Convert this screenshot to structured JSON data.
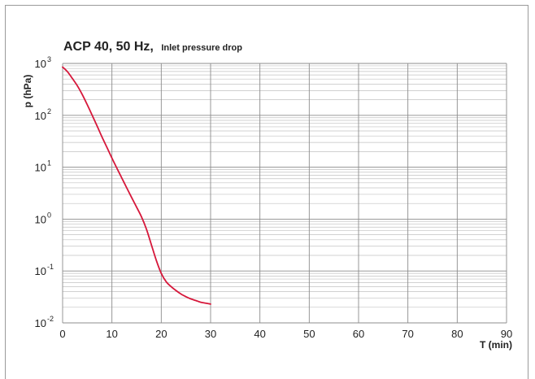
{
  "chart_data": {
    "type": "line",
    "title": "ACP 40, 50 Hz,",
    "subtitle": "Inlet pressure drop",
    "xlabel": "T (min)",
    "ylabel": "p (hPa)",
    "xlim": [
      0,
      90
    ],
    "ylim": [
      0.01,
      1000
    ],
    "yscale": "log",
    "grid": true,
    "x_ticks": [
      "0",
      "10",
      "20",
      "30",
      "40",
      "50",
      "60",
      "70",
      "80",
      "90"
    ],
    "y_ticks": [
      {
        "base": "10",
        "exp": "-2"
      },
      {
        "base": "10",
        "exp": "-1"
      },
      {
        "base": "10",
        "exp": "0"
      },
      {
        "base": "10",
        "exp": "1"
      },
      {
        "base": "10",
        "exp": "2"
      },
      {
        "base": "10",
        "exp": "3"
      }
    ],
    "series": [
      {
        "color": "#d6173a",
        "x": [
          0,
          1,
          2,
          3,
          4,
          5,
          6,
          7,
          8,
          9,
          10,
          11,
          12,
          13,
          14,
          15,
          16,
          17,
          18,
          19,
          20,
          21,
          22,
          23,
          24,
          25,
          26,
          27,
          28,
          29,
          30
        ],
        "y": [
          850,
          690,
          510,
          370,
          250,
          160,
          100,
          62,
          38,
          24,
          15,
          9.6,
          6.2,
          4.0,
          2.6,
          1.7,
          1.1,
          0.64,
          0.32,
          0.16,
          0.09,
          0.062,
          0.05,
          0.042,
          0.036,
          0.032,
          0.029,
          0.027,
          0.025,
          0.024,
          0.023
        ]
      }
    ]
  }
}
